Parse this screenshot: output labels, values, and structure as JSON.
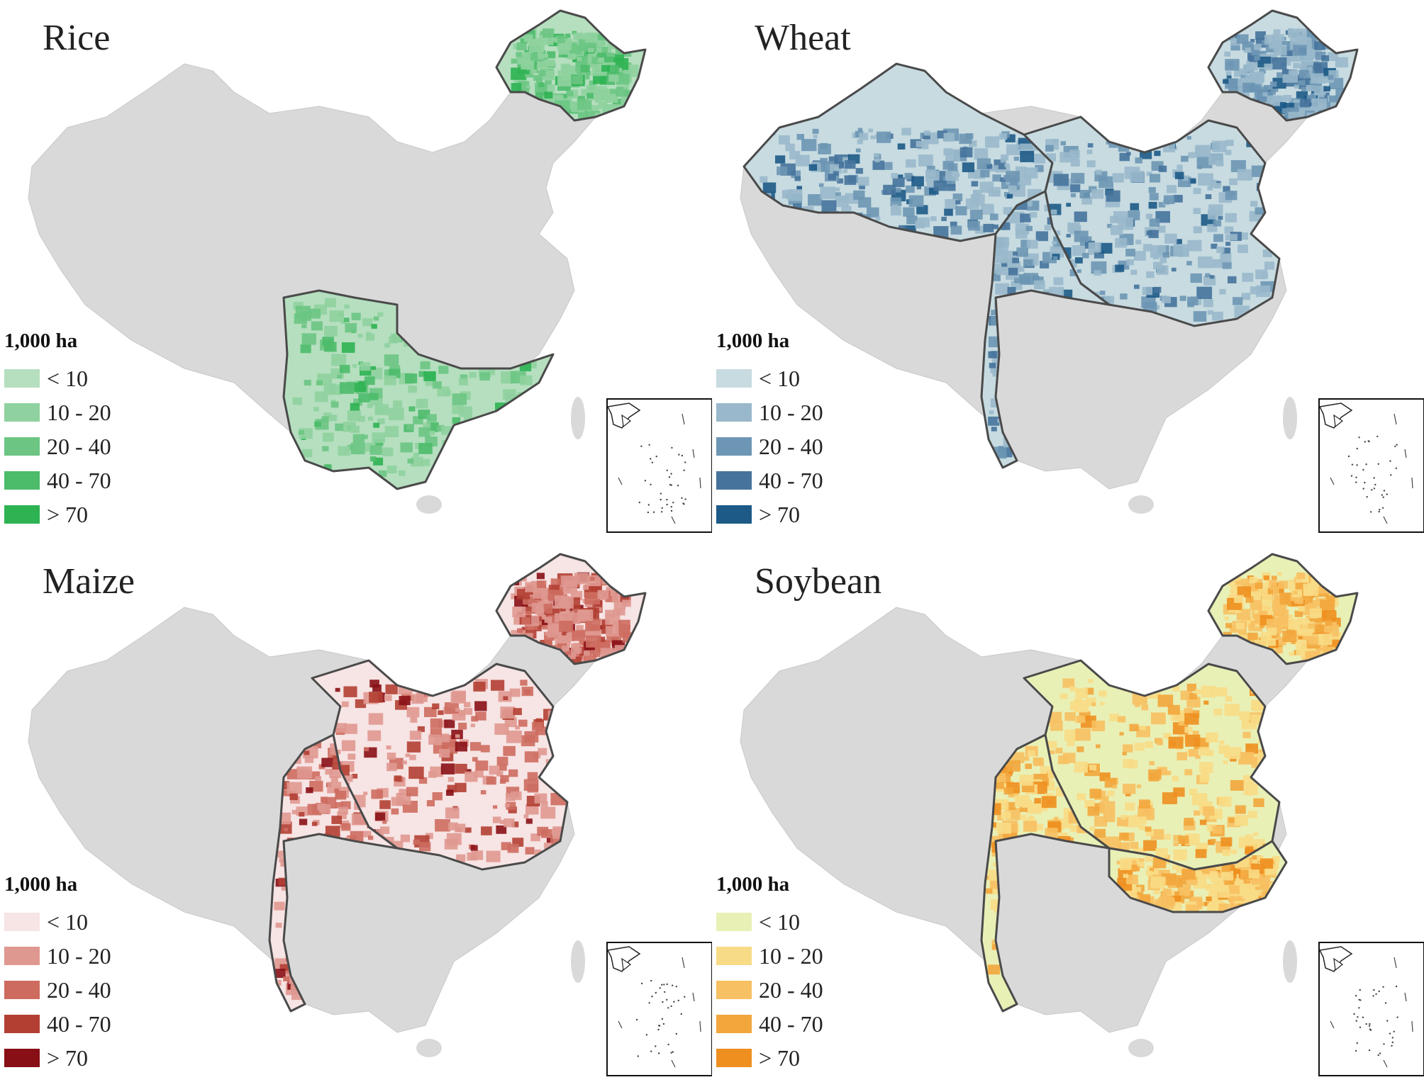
{
  "panels": [
    {
      "title": "Rice",
      "legend_title": "1,000 ha",
      "legend": [
        {
          "label": "< 10",
          "color": "#b5dfbf"
        },
        {
          "label": "10 - 20",
          "color": "#8fd19f"
        },
        {
          "label": "20 - 40",
          "color": "#6cc583"
        },
        {
          "label": "40 - 70",
          "color": "#4cbb6a"
        },
        {
          "label": "> 70",
          "color": "#2eb352"
        }
      ],
      "cultivated_regions": [
        "northeast",
        "south"
      ]
    },
    {
      "title": "Wheat",
      "legend_title": "1,000 ha",
      "legend": [
        {
          "label": "< 10",
          "color": "#c7dbe1"
        },
        {
          "label": "10 - 20",
          "color": "#99b8cb"
        },
        {
          "label": "20 - 40",
          "color": "#6d96b4"
        },
        {
          "label": "40 - 70",
          "color": "#46739c"
        },
        {
          "label": "> 70",
          "color": "#1d5a87"
        }
      ],
      "cultivated_regions": [
        "northeast",
        "northwest",
        "north",
        "southwest"
      ]
    },
    {
      "title": "Maize",
      "legend_title": "1,000 ha",
      "legend": [
        {
          "label": "< 10",
          "color": "#f7e4e4"
        },
        {
          "label": "10 - 20",
          "color": "#df9890"
        },
        {
          "label": "20 - 40",
          "color": "#cd6b5f"
        },
        {
          "label": "40 - 70",
          "color": "#b33f33"
        },
        {
          "label": "> 70",
          "color": "#880f16"
        }
      ],
      "cultivated_regions": [
        "northeast",
        "north",
        "southwest"
      ]
    },
    {
      "title": "Soybean",
      "legend_title": "1,000 ha",
      "legend": [
        {
          "label": "< 10",
          "color": "#e9f0b6"
        },
        {
          "label": "10 - 20",
          "color": "#f8db86"
        },
        {
          "label": "20 - 40",
          "color": "#f7c062"
        },
        {
          "label": "40 - 70",
          "color": "#f2a63c"
        },
        {
          "label": "> 70",
          "color": "#ee8f1f"
        }
      ],
      "cultivated_regions": [
        "northeast",
        "north",
        "central",
        "southwest"
      ]
    }
  ],
  "colors": {
    "base_land": "#d9d9d9",
    "boundary": "#4a4a4a"
  }
}
